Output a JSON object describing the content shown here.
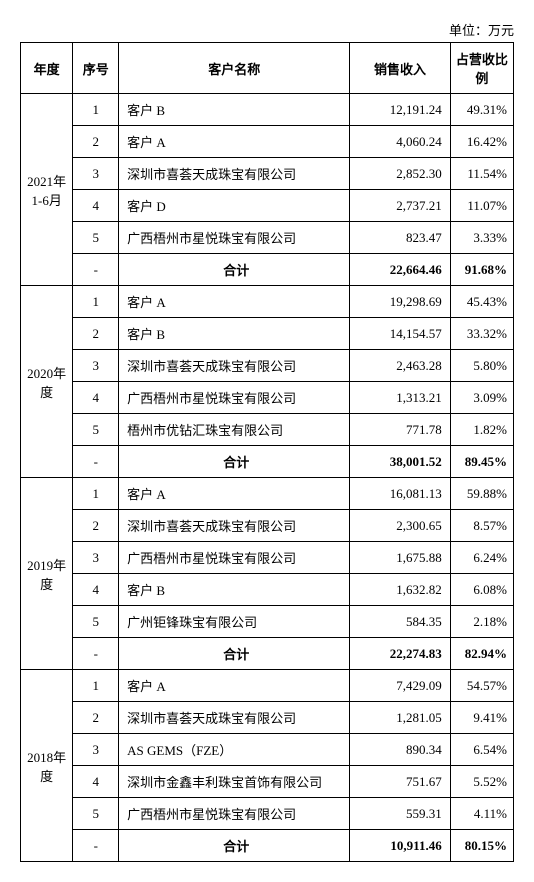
{
  "unit_label": "单位：万元",
  "headers": {
    "year": "年度",
    "seq": "序号",
    "name": "客户名称",
    "revenue": "销售收入",
    "pct": "占营收比例"
  },
  "total_label": "合计",
  "total_seq": "-",
  "periods": [
    {
      "year_label": "2021年 1-6月",
      "rows": [
        {
          "seq": "1",
          "name": "客户 B",
          "revenue": "12,191.24",
          "pct": "49.31%"
        },
        {
          "seq": "2",
          "name": "客户 A",
          "revenue": "4,060.24",
          "pct": "16.42%"
        },
        {
          "seq": "3",
          "name": "深圳市喜荟天成珠宝有限公司",
          "revenue": "2,852.30",
          "pct": "11.54%"
        },
        {
          "seq": "4",
          "name": "客户 D",
          "revenue": "2,737.21",
          "pct": "11.07%"
        },
        {
          "seq": "5",
          "name": "广西梧州市星悦珠宝有限公司",
          "revenue": "823.47",
          "pct": "3.33%"
        }
      ],
      "total_revenue": "22,664.46",
      "total_pct": "91.68%"
    },
    {
      "year_label": "2020年度",
      "rows": [
        {
          "seq": "1",
          "name": "客户 A",
          "revenue": "19,298.69",
          "pct": "45.43%"
        },
        {
          "seq": "2",
          "name": "客户 B",
          "revenue": "14,154.57",
          "pct": "33.32%"
        },
        {
          "seq": "3",
          "name": "深圳市喜荟天成珠宝有限公司",
          "revenue": "2,463.28",
          "pct": "5.80%"
        },
        {
          "seq": "4",
          "name": "广西梧州市星悦珠宝有限公司",
          "revenue": "1,313.21",
          "pct": "3.09%"
        },
        {
          "seq": "5",
          "name": "梧州市优钻汇珠宝有限公司",
          "revenue": "771.78",
          "pct": "1.82%"
        }
      ],
      "total_revenue": "38,001.52",
      "total_pct": "89.45%"
    },
    {
      "year_label": "2019年度",
      "rows": [
        {
          "seq": "1",
          "name": "客户 A",
          "revenue": "16,081.13",
          "pct": "59.88%"
        },
        {
          "seq": "2",
          "name": "深圳市喜荟天成珠宝有限公司",
          "revenue": "2,300.65",
          "pct": "8.57%"
        },
        {
          "seq": "3",
          "name": "广西梧州市星悦珠宝有限公司",
          "revenue": "1,675.88",
          "pct": "6.24%"
        },
        {
          "seq": "4",
          "name": "客户 B",
          "revenue": "1,632.82",
          "pct": "6.08%"
        },
        {
          "seq": "5",
          "name": "广州钜锋珠宝有限公司",
          "revenue": "584.35",
          "pct": "2.18%"
        }
      ],
      "total_revenue": "22,274.83",
      "total_pct": "82.94%"
    },
    {
      "year_label": "2018年度",
      "rows": [
        {
          "seq": "1",
          "name": "客户 A",
          "revenue": "7,429.09",
          "pct": "54.57%"
        },
        {
          "seq": "2",
          "name": "深圳市喜荟天成珠宝有限公司",
          "revenue": "1,281.05",
          "pct": "9.41%"
        },
        {
          "seq": "3",
          "name": "AS GEMS（FZE）",
          "revenue": "890.34",
          "pct": "6.54%"
        },
        {
          "seq": "4",
          "name": "深圳市金鑫丰利珠宝首饰有限公司",
          "revenue": "751.67",
          "pct": "5.52%"
        },
        {
          "seq": "5",
          "name": "广西梧州市星悦珠宝有限公司",
          "revenue": "559.31",
          "pct": "4.11%"
        }
      ],
      "total_revenue": "10,911.46",
      "total_pct": "80.15%"
    }
  ]
}
